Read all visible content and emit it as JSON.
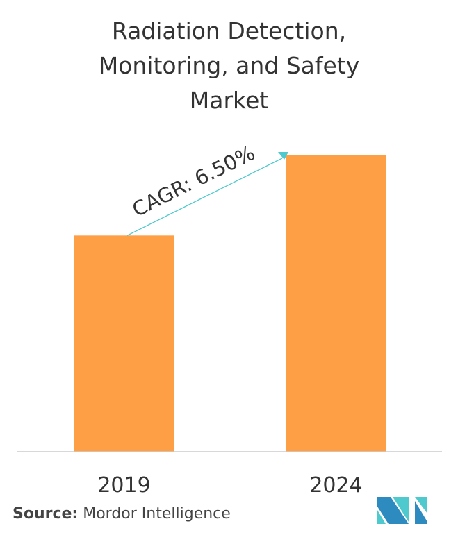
{
  "chart_data": {
    "type": "bar",
    "title_lines": [
      "Radiation Detection,",
      "Monitoring, and Safety",
      "Market"
    ],
    "categories": [
      "2019",
      "2024"
    ],
    "values": [
      1.0,
      1.37
    ],
    "value_note": "relative market size (no y-axis shown)",
    "annotation": "CAGR: 6.50%",
    "xlabel": "",
    "ylabel": "",
    "grid": false,
    "colors": {
      "bar": "#FF9F45",
      "arrow": "#4ECACE",
      "text": "#333333"
    }
  },
  "source": {
    "label": "Source:",
    "value": "Mordor Intelligence"
  },
  "logo": {
    "colors": [
      "#2E8BC0",
      "#4ECACE"
    ]
  }
}
